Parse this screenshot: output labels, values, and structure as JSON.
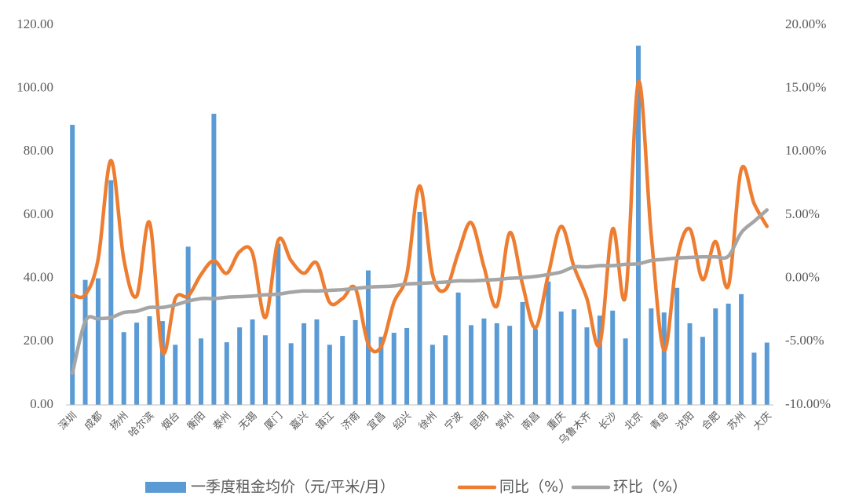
{
  "chart_data": {
    "type": "bar-line",
    "categories": [
      "深圳",
      null,
      "成都",
      null,
      "扬州",
      null,
      "哈尔滨",
      null,
      "烟台",
      null,
      "衡阳",
      null,
      "泰州",
      null,
      "无锡",
      null,
      "厦门",
      null,
      "嘉兴",
      null,
      "镇江",
      null,
      "济南",
      null,
      "宜昌",
      null,
      "绍兴",
      null,
      "徐州",
      null,
      "宁波",
      null,
      "昆明",
      null,
      "常州",
      null,
      "南昌",
      null,
      "重庆",
      null,
      "乌鲁木齐",
      null,
      "长沙",
      null,
      "北京",
      null,
      "青岛",
      null,
      "沈阳",
      null,
      "合肥",
      null,
      "苏州",
      null,
      "大庆"
    ],
    "series": [
      {
        "name": "一季度租金均价（元/平米/月）",
        "type": "bar",
        "color": "#5b9bd5",
        "values": [
          88.5,
          39.5,
          40,
          71,
          23,
          26,
          28,
          26.5,
          19,
          50,
          21,
          92,
          19.8,
          24.5,
          27,
          22,
          51,
          19.5,
          25.8,
          27,
          19,
          21.8,
          26.8,
          42.5,
          21.5,
          22.8,
          24.3,
          61,
          19,
          22,
          35.5,
          25.2,
          27.3,
          25.8,
          25,
          32.5,
          24,
          39,
          29.5,
          30.2,
          24.5,
          28.2,
          29.8,
          21,
          113.5,
          30.5,
          29.2,
          37,
          25.8,
          21.5,
          30.5,
          32,
          35,
          16.5,
          19.7
        ]
      },
      {
        "name": "同比（%）",
        "type": "line",
        "axis": "y2",
        "color": "#ed7d31",
        "values": [
          -1.3,
          -1.3,
          1.5,
          9.3,
          1.5,
          -1.4,
          4.4,
          -5.8,
          -1.6,
          -1.4,
          0.3,
          1.4,
          0.4,
          2.1,
          2.0,
          -3.1,
          3.0,
          1.4,
          0.4,
          1.2,
          -1.9,
          -1.6,
          -0.8,
          -5.2,
          -5.4,
          -1.9,
          0.3,
          7.3,
          0.3,
          -0.9,
          2.0,
          4.4,
          0.9,
          -2.2,
          3.6,
          -0.5,
          -3.9,
          0.3,
          4.1,
          0.9,
          -1.6,
          -5.2,
          3.9,
          -1.4,
          15.5,
          3.4,
          -5.7,
          1.5,
          3.9,
          -0.1,
          2.9,
          -0.6,
          8.6,
          5.9,
          4.1
        ]
      },
      {
        "name": "环比（%）",
        "type": "line",
        "axis": "y2",
        "color": "#a5a5a5",
        "values": [
          -7.5,
          -3.4,
          -3.2,
          -3.1,
          -2.7,
          -2.6,
          -2.3,
          -2.3,
          -2.1,
          -1.8,
          -1.6,
          -1.6,
          -1.5,
          -1.45,
          -1.4,
          -1.3,
          -1.25,
          -1.1,
          -1.0,
          -1.0,
          -0.95,
          -0.9,
          -0.8,
          -0.7,
          -0.65,
          -0.6,
          -0.45,
          -0.4,
          -0.35,
          -0.3,
          -0.2,
          -0.2,
          -0.15,
          -0.1,
          0,
          0.05,
          0.15,
          0.3,
          0.5,
          0.9,
          0.9,
          1.0,
          1.0,
          1.1,
          1.15,
          1.4,
          1.5,
          1.6,
          1.65,
          1.7,
          1.7,
          1.75,
          3.6,
          4.5,
          5.4
        ]
      }
    ],
    "ylim": [
      0,
      120
    ],
    "yticks": [
      {
        "value": 0,
        "label": "0.00"
      },
      {
        "value": 20,
        "label": "20.00"
      },
      {
        "value": 40,
        "label": "40.00"
      },
      {
        "value": 60,
        "label": "60.00"
      },
      {
        "value": 80,
        "label": "80.00"
      },
      {
        "value": 100,
        "label": "100.00"
      },
      {
        "value": 120,
        "label": "120.00"
      }
    ],
    "y2lim": [
      -10,
      20
    ],
    "y2ticks": [
      {
        "value": -10,
        "label": "-10.00%"
      },
      {
        "value": -5,
        "label": "-5.00%"
      },
      {
        "value": 0,
        "label": "0.00%"
      },
      {
        "value": 5,
        "label": "5.00%"
      },
      {
        "value": 10,
        "label": "10.00%"
      },
      {
        "value": 15,
        "label": "15.00%"
      },
      {
        "value": 20,
        "label": "20.00%"
      }
    ],
    "legend": "bottom"
  }
}
